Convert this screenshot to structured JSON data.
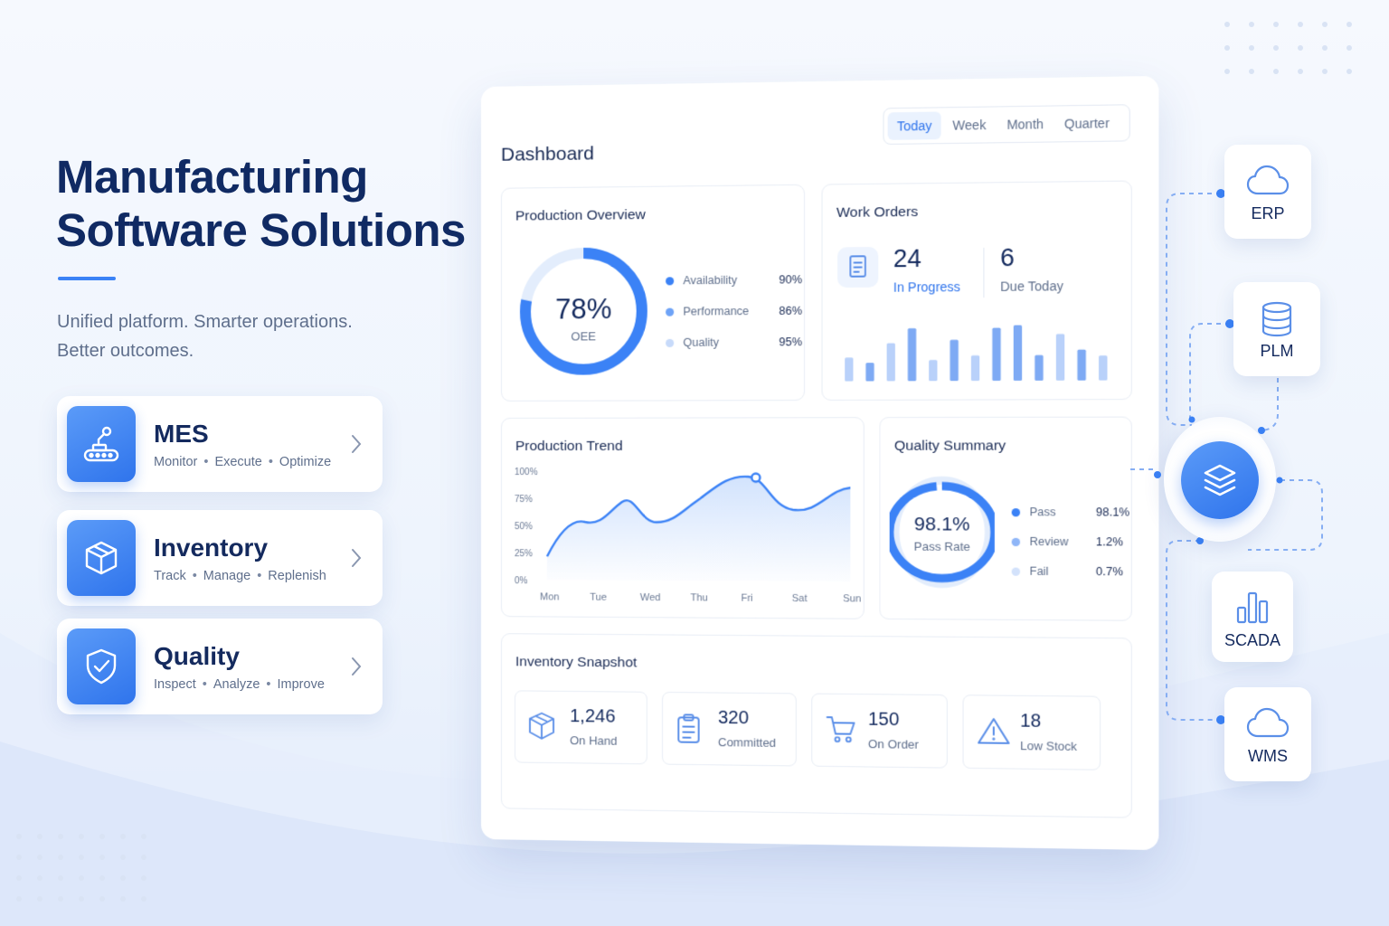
{
  "hero": {
    "title_line1": "Manufacturing",
    "title_line2": "Software Solutions",
    "subtitle_line1": "Unified platform. Smarter operations.",
    "subtitle_line2": "Better outcomes."
  },
  "features": [
    {
      "name": "MES",
      "tags": [
        "Monitor",
        "Execute",
        "Optimize"
      ],
      "icon": "conveyor-icon"
    },
    {
      "name": "Inventory",
      "tags": [
        "Track",
        "Manage",
        "Replenish"
      ],
      "icon": "box-icon"
    },
    {
      "name": "Quality",
      "tags": [
        "Inspect",
        "Analyze",
        "Improve"
      ],
      "icon": "shield-check-icon"
    }
  ],
  "dashboard": {
    "title": "Dashboard",
    "ranges": [
      "Today",
      "Week",
      "Month",
      "Quarter"
    ],
    "active_range": "Today",
    "production_overview": {
      "title": "Production Overview",
      "oee_value": "78%",
      "oee_label": "OEE",
      "oee_fraction": 0.78,
      "metrics": [
        {
          "label": "Availability",
          "value": "90%",
          "color": "#3b82f6"
        },
        {
          "label": "Performance",
          "value": "86%",
          "color": "#6ea3f7"
        },
        {
          "label": "Quality",
          "value": "95%",
          "color": "#c7dafa"
        }
      ]
    },
    "work_orders": {
      "title": "Work Orders",
      "in_progress_value": "24",
      "in_progress_label": "In Progress",
      "due_today_value": "6",
      "due_today_label": "Due Today",
      "bars": [
        0.45,
        0.35,
        0.72,
        1.0,
        0.4,
        0.78,
        0.48,
        1.0,
        1.05,
        0.48,
        0.88,
        0.58,
        0.47
      ]
    },
    "production_trend": {
      "title": "Production Trend",
      "y_ticks": [
        "100%",
        "75%",
        "50%",
        "25%",
        "0%"
      ],
      "x_ticks": [
        "Mon",
        "Tue",
        "Wed",
        "Thu",
        "Fri",
        "Sat",
        "Sun"
      ]
    },
    "quality_summary": {
      "title": "Quality Summary",
      "rate_value": "98.1%",
      "rate_label": "Pass Rate",
      "rate_fraction": 0.981,
      "items": [
        {
          "label": "Pass",
          "value": "98.1%",
          "color": "#3b82f6"
        },
        {
          "label": "Review",
          "value": "1.2%",
          "color": "#8fb6f8"
        },
        {
          "label": "Fail",
          "value": "0.7%",
          "color": "#d3e2fb"
        }
      ]
    },
    "inventory_snapshot": {
      "title": "Inventory Snapshot",
      "items": [
        {
          "value": "1,246",
          "label": "On Hand",
          "icon": "box-icon"
        },
        {
          "value": "320",
          "label": "Committed",
          "icon": "clipboard-icon"
        },
        {
          "value": "150",
          "label": "On Order",
          "icon": "cart-icon"
        },
        {
          "value": "18",
          "label": "Low Stock",
          "icon": "warning-icon"
        }
      ]
    }
  },
  "integrations": [
    {
      "label": "ERP",
      "icon": "cloud-icon"
    },
    {
      "label": "PLM",
      "icon": "database-icon"
    },
    {
      "label": "SCADA",
      "icon": "bar-chart-icon"
    },
    {
      "label": "WMS",
      "icon": "cloud-icon"
    }
  ],
  "hub": {
    "icon": "layers-icon"
  },
  "colors": {
    "accent": "#2f74ec",
    "navy": "#102a63",
    "muted": "#5f6f8c"
  }
}
